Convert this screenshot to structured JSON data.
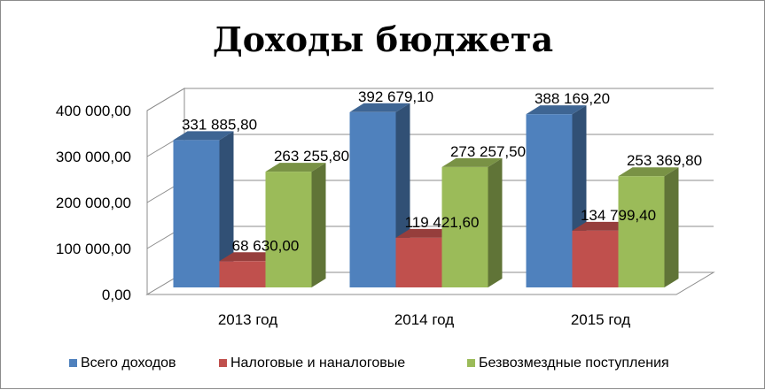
{
  "chart_data": {
    "type": "bar",
    "variant": "3d-clustered-column",
    "title": "Доходы бюджета",
    "categories": [
      "2013 год",
      "2014 год",
      "2015 год"
    ],
    "series": [
      {
        "name": "Всего доходов",
        "color": "#4F81BD",
        "values": [
          331885.8,
          392679.1,
          388169.2
        ],
        "labels": [
          "331 885,80",
          "392 679,10",
          "388 169,20"
        ]
      },
      {
        "name": "Налоговые и наналоговые",
        "color": "#C0504D",
        "values": [
          68630.0,
          119421.6,
          134799.4
        ],
        "labels": [
          "68 630,00",
          "119 421,60",
          "134 799,40"
        ]
      },
      {
        "name": "Безвозмездные поступления",
        "color": "#9BBB59",
        "values": [
          263255.8,
          273257.5,
          253369.8
        ],
        "labels": [
          "263 255,80",
          "273 257,50",
          "253 369,80"
        ]
      }
    ],
    "ylim": [
      0,
      400000
    ],
    "yticks": [
      "0,00",
      "100 000,00",
      "200 000,00",
      "300 000,00",
      "400 000,00"
    ],
    "grid": true,
    "legend_position": "bottom"
  }
}
